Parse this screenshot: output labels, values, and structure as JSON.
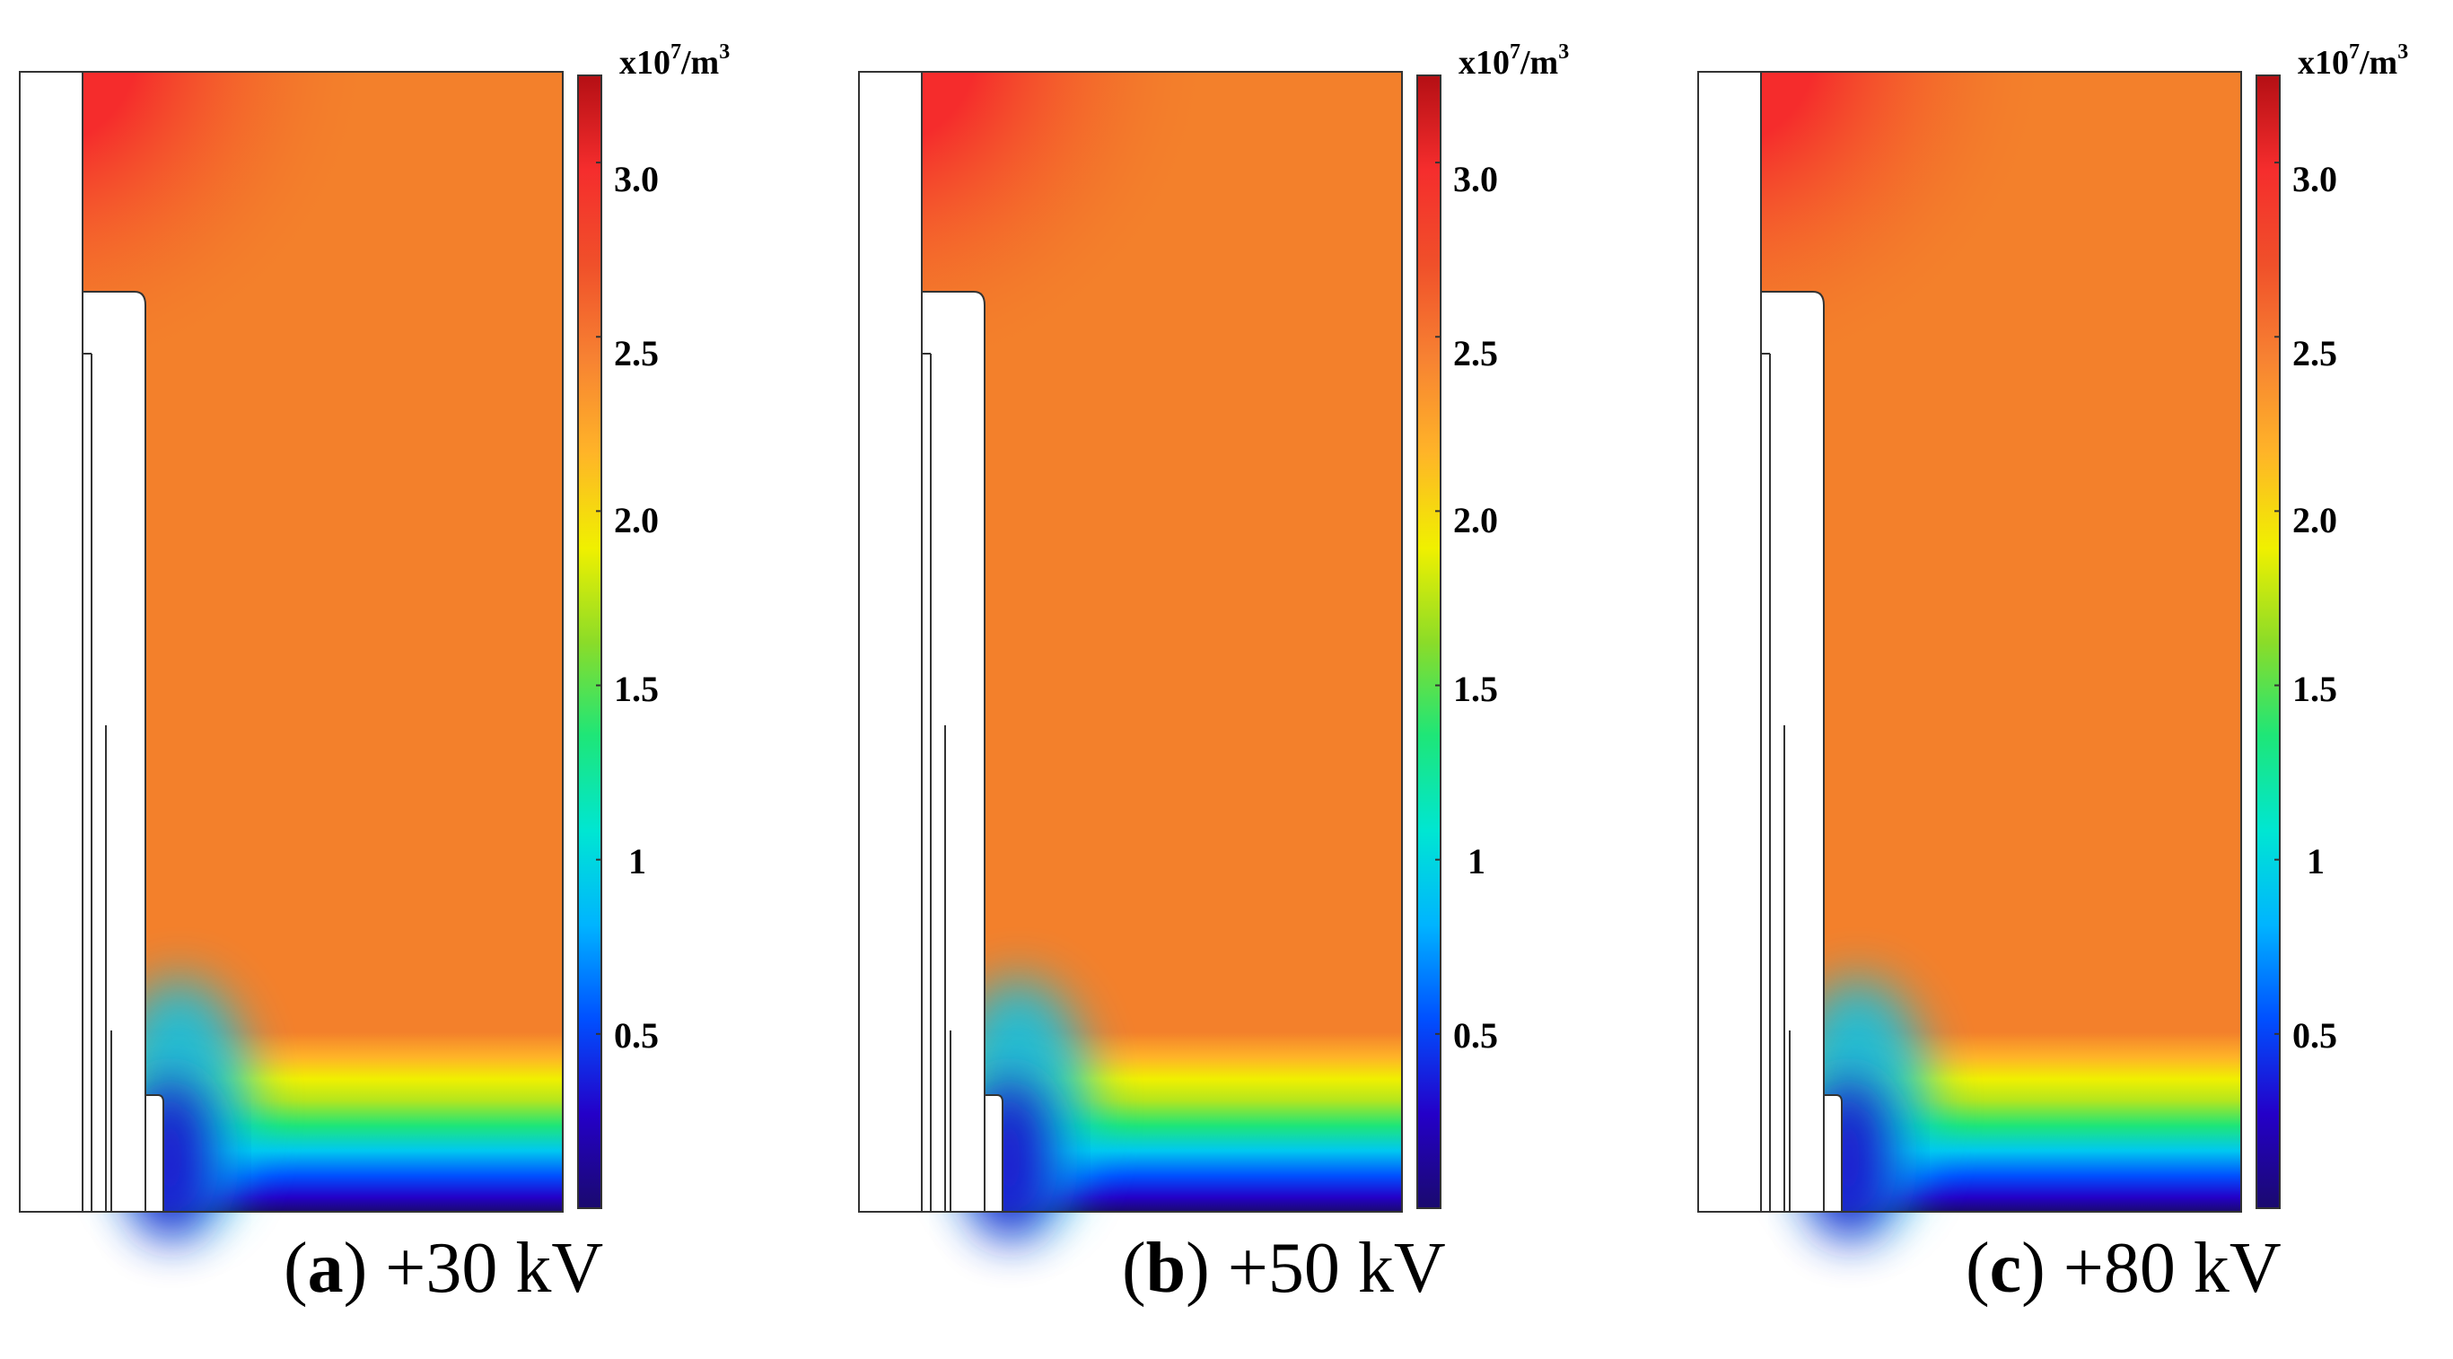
{
  "figure": {
    "colorbar": {
      "unit_prefix": "x10",
      "unit_exp": "7",
      "unit_suffix": "/m",
      "unit_suffix_exp": "3",
      "ticks": [
        "3.0",
        "2.5",
        "2.0",
        "1.5",
        "1",
        "0.5"
      ],
      "tick_values": [
        3.0,
        2.5,
        2.0,
        1.5,
        1.0,
        0.5
      ],
      "min": 0.0,
      "max": 3.25,
      "colors": [
        "#1a0a6e",
        "#2400c8",
        "#0050ff",
        "#00b4ff",
        "#00e6d2",
        "#1ee678",
        "#8cdc28",
        "#f0f000",
        "#ffb428",
        "#f78232",
        "#f0502a",
        "#f52d2d",
        "#b40f14"
      ]
    },
    "field_colors": {
      "bulk": "#f3802b",
      "hot": "#f52c2c",
      "wall": "#ffffff",
      "outline": "#333333"
    },
    "panels": [
      {
        "id": "a",
        "letter": "a",
        "label": "+30 kV"
      },
      {
        "id": "b",
        "letter": "b",
        "label": "+50 kV"
      },
      {
        "id": "c",
        "letter": "c",
        "label": "+80 kV"
      }
    ]
  }
}
